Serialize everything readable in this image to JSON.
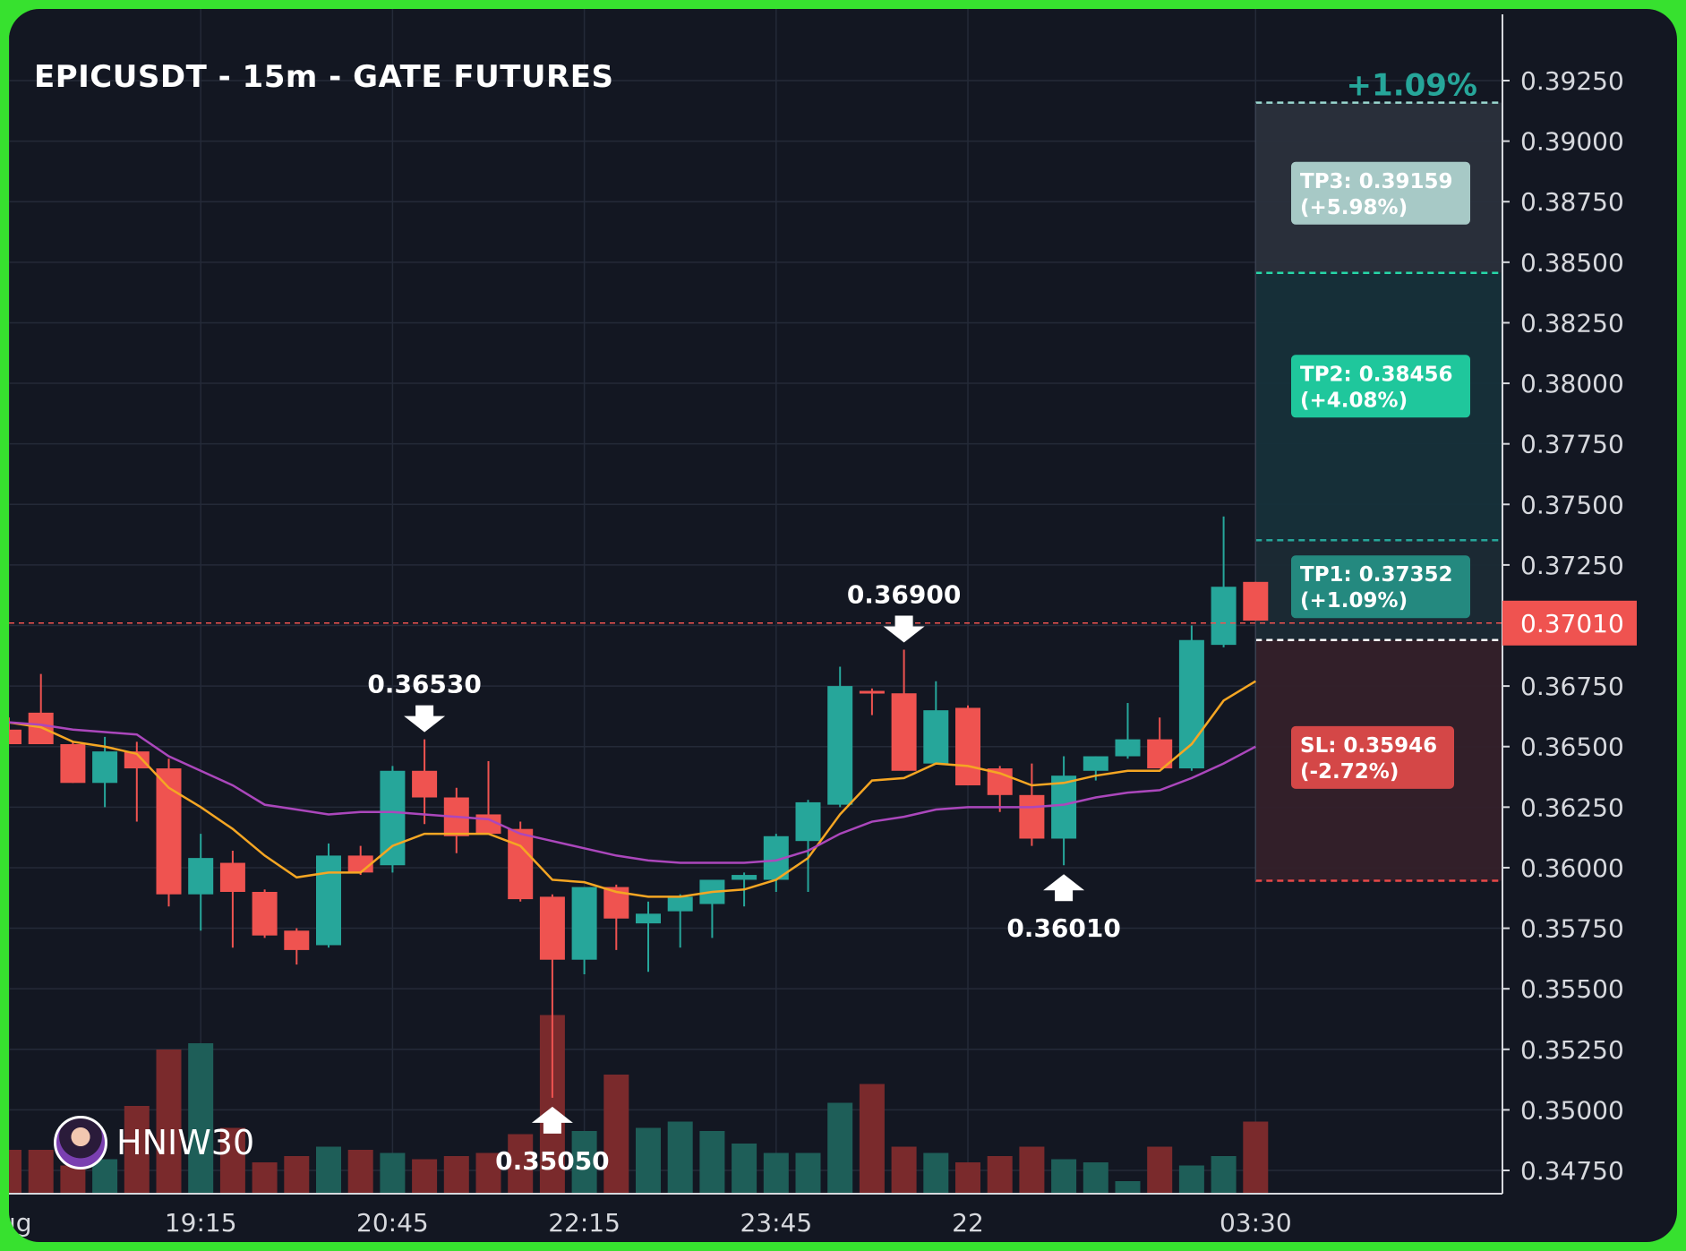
{
  "title": "EPICUSDT - 15m - GATE FUTURES",
  "brand": {
    "name": "HNIW30",
    "avatar_icon": "trader-avatar-icon"
  },
  "colors": {
    "background": "#131722",
    "frame": "#37e12f",
    "up": "#26a69a",
    "down": "#ef5350",
    "ema_fast": "#f5a623",
    "ema_slow": "#ab47bc",
    "tp": "#26d7a8",
    "sl": "#e84848"
  },
  "chart_data": {
    "type": "candlestick",
    "symbol": "EPICUSDT",
    "interval": "15m",
    "exchange": "GATE FUTURES",
    "price_axis": {
      "ticks": [
        "0.39250",
        "0.39000",
        "0.38750",
        "0.38500",
        "0.38250",
        "0.38000",
        "0.37750",
        "0.37500",
        "0.37250",
        "0.37000",
        "0.36750",
        "0.36500",
        "0.36250",
        "0.36000",
        "0.35750",
        "0.35500",
        "0.35250",
        "0.35000",
        "0.34750"
      ],
      "range": [
        0.346,
        0.3945
      ]
    },
    "time_axis": {
      "ticks": [
        {
          "label": "ıg",
          "index": 0
        },
        {
          "label": "19:15",
          "index": 6
        },
        {
          "label": "20:45",
          "index": 12
        },
        {
          "label": "22:15",
          "index": 18
        },
        {
          "label": "23:45",
          "index": 24
        },
        {
          "label": "22",
          "index": 30
        },
        {
          "label": "03:30",
          "index": 39
        }
      ]
    },
    "candles": [
      {
        "o": 0.3657,
        "h": 0.3662,
        "l": 0.3651,
        "c": 0.3651
      },
      {
        "o": 0.3664,
        "h": 0.368,
        "l": 0.3651,
        "c": 0.3651
      },
      {
        "o": 0.3651,
        "h": 0.3652,
        "l": 0.3635,
        "c": 0.3635
      },
      {
        "o": 0.3635,
        "h": 0.3654,
        "l": 0.3625,
        "c": 0.3648
      },
      {
        "o": 0.3648,
        "h": 0.3652,
        "l": 0.3619,
        "c": 0.3641
      },
      {
        "o": 0.3641,
        "h": 0.3645,
        "l": 0.3584,
        "c": 0.3589
      },
      {
        "o": 0.3589,
        "h": 0.3614,
        "l": 0.3574,
        "c": 0.3604
      },
      {
        "o": 0.3602,
        "h": 0.3607,
        "l": 0.3567,
        "c": 0.359
      },
      {
        "o": 0.359,
        "h": 0.3591,
        "l": 0.3571,
        "c": 0.3572
      },
      {
        "o": 0.3574,
        "h": 0.3575,
        "l": 0.356,
        "c": 0.3566
      },
      {
        "o": 0.3568,
        "h": 0.361,
        "l": 0.3567,
        "c": 0.3605
      },
      {
        "o": 0.3605,
        "h": 0.3609,
        "l": 0.3597,
        "c": 0.3598
      },
      {
        "o": 0.3601,
        "h": 0.3642,
        "l": 0.3598,
        "c": 0.364
      },
      {
        "o": 0.364,
        "h": 0.3653,
        "l": 0.3618,
        "c": 0.3629
      },
      {
        "o": 0.3629,
        "h": 0.3633,
        "l": 0.3606,
        "c": 0.3613
      },
      {
        "o": 0.3622,
        "h": 0.3644,
        "l": 0.3614,
        "c": 0.3614
      },
      {
        "o": 0.3616,
        "h": 0.3619,
        "l": 0.3586,
        "c": 0.3587
      },
      {
        "o": 0.3588,
        "h": 0.3589,
        "l": 0.3505,
        "c": 0.3562
      },
      {
        "o": 0.3562,
        "h": 0.3592,
        "l": 0.3556,
        "c": 0.3592
      },
      {
        "o": 0.3592,
        "h": 0.3593,
        "l": 0.3566,
        "c": 0.3579
      },
      {
        "o": 0.3577,
        "h": 0.3586,
        "l": 0.3557,
        "c": 0.3581
      },
      {
        "o": 0.3582,
        "h": 0.3589,
        "l": 0.3567,
        "c": 0.3588
      },
      {
        "o": 0.3585,
        "h": 0.3595,
        "l": 0.3571,
        "c": 0.3595
      },
      {
        "o": 0.3595,
        "h": 0.3598,
        "l": 0.3584,
        "c": 0.3597
      },
      {
        "o": 0.3595,
        "h": 0.3614,
        "l": 0.359,
        "c": 0.3613
      },
      {
        "o": 0.3611,
        "h": 0.3628,
        "l": 0.359,
        "c": 0.3627
      },
      {
        "o": 0.3626,
        "h": 0.3683,
        "l": 0.3625,
        "c": 0.3675
      },
      {
        "o": 0.3673,
        "h": 0.3674,
        "l": 0.3663,
        "c": 0.3672
      },
      {
        "o": 0.3672,
        "h": 0.369,
        "l": 0.364,
        "c": 0.364
      },
      {
        "o": 0.3643,
        "h": 0.3677,
        "l": 0.3643,
        "c": 0.3665
      },
      {
        "o": 0.3666,
        "h": 0.3667,
        "l": 0.3634,
        "c": 0.3634
      },
      {
        "o": 0.3641,
        "h": 0.3642,
        "l": 0.3623,
        "c": 0.363
      },
      {
        "o": 0.363,
        "h": 0.3643,
        "l": 0.3609,
        "c": 0.3612
      },
      {
        "o": 0.3612,
        "h": 0.3646,
        "l": 0.3601,
        "c": 0.3638
      },
      {
        "o": 0.364,
        "h": 0.3646,
        "l": 0.3636,
        "c": 0.3646
      },
      {
        "o": 0.3646,
        "h": 0.3668,
        "l": 0.3645,
        "c": 0.3653
      },
      {
        "o": 0.3653,
        "h": 0.3662,
        "l": 0.3641,
        "c": 0.3641
      },
      {
        "o": 0.3641,
        "h": 0.37,
        "l": 0.364,
        "c": 0.3694
      },
      {
        "o": 0.3692,
        "h": 0.3745,
        "l": 0.3691,
        "c": 0.3716
      },
      {
        "o": 0.3718,
        "h": 0.3718,
        "l": 0.3702,
        "c": 0.3702
      }
    ],
    "volume": [
      0.14,
      0.14,
      0.09,
      0.11,
      0.28,
      0.46,
      0.48,
      0.21,
      0.1,
      0.12,
      0.15,
      0.14,
      0.13,
      0.11,
      0.12,
      0.13,
      0.19,
      0.57,
      0.2,
      0.38,
      0.21,
      0.23,
      0.2,
      0.16,
      0.13,
      0.13,
      0.29,
      0.35,
      0.15,
      0.13,
      0.1,
      0.12,
      0.15,
      0.11,
      0.1,
      0.04,
      0.15,
      0.09,
      0.12,
      0.23
    ],
    "ema_fast": {
      "color": "#f5a623",
      "values": [
        0.366,
        0.3658,
        0.3652,
        0.365,
        0.3647,
        0.3633,
        0.3625,
        0.3616,
        0.3605,
        0.3596,
        0.3598,
        0.3598,
        0.3609,
        0.3614,
        0.3614,
        0.3614,
        0.3609,
        0.3595,
        0.3594,
        0.359,
        0.3588,
        0.3588,
        0.359,
        0.3591,
        0.3595,
        0.3604,
        0.3622,
        0.3636,
        0.3637,
        0.3643,
        0.3642,
        0.3639,
        0.3634,
        0.3635,
        0.3638,
        0.364,
        0.364,
        0.3651,
        0.3669,
        0.3677
      ]
    },
    "ema_slow": {
      "color": "#ab47bc",
      "values": [
        0.366,
        0.3659,
        0.3657,
        0.3656,
        0.3655,
        0.3646,
        0.364,
        0.3634,
        0.3626,
        0.3624,
        0.3622,
        0.3623,
        0.3623,
        0.3622,
        0.3621,
        0.362,
        0.3614,
        0.3611,
        0.3608,
        0.3605,
        0.3603,
        0.3602,
        0.3602,
        0.3602,
        0.3603,
        0.3607,
        0.3614,
        0.3619,
        0.3621,
        0.3624,
        0.3625,
        0.3625,
        0.3625,
        0.3626,
        0.3629,
        0.3631,
        0.3632,
        0.3637,
        0.3643,
        0.365
      ]
    },
    "current_price": {
      "label": "0.37010",
      "value": 0.3701
    },
    "position": {
      "entry": 0.3694,
      "stop_loss": 0.35946,
      "tp1": 0.37352,
      "tp2": 0.38456,
      "tp3": 0.39159,
      "start_index": 39,
      "header_label": "+1.09%"
    },
    "labels": [
      {
        "text": "TP3: 0.39159",
        "sub": "(+5.98%)",
        "kind": "tp3",
        "price": 0.38785
      },
      {
        "text": "TP2: 0.38456",
        "sub": "(+4.08%)",
        "kind": "tp2",
        "price": 0.37988
      },
      {
        "text": "TP1: 0.37352",
        "sub": "(+1.09%)",
        "kind": "tp1",
        "price": 0.3716
      },
      {
        "text": "SL: 0.35946",
        "sub": "(-2.72%)",
        "kind": "sl",
        "price": 0.36455
      }
    ],
    "annotations": [
      {
        "text": "0.36530",
        "index": 13,
        "price": 0.3653,
        "direction": "down"
      },
      {
        "text": "0.36900",
        "index": 28,
        "price": 0.369,
        "direction": "down"
      },
      {
        "text": "0.36010",
        "index": 33,
        "price": 0.3601,
        "direction": "up"
      },
      {
        "text": "0.35050",
        "index": 17,
        "price": 0.3505,
        "direction": "up"
      }
    ]
  }
}
